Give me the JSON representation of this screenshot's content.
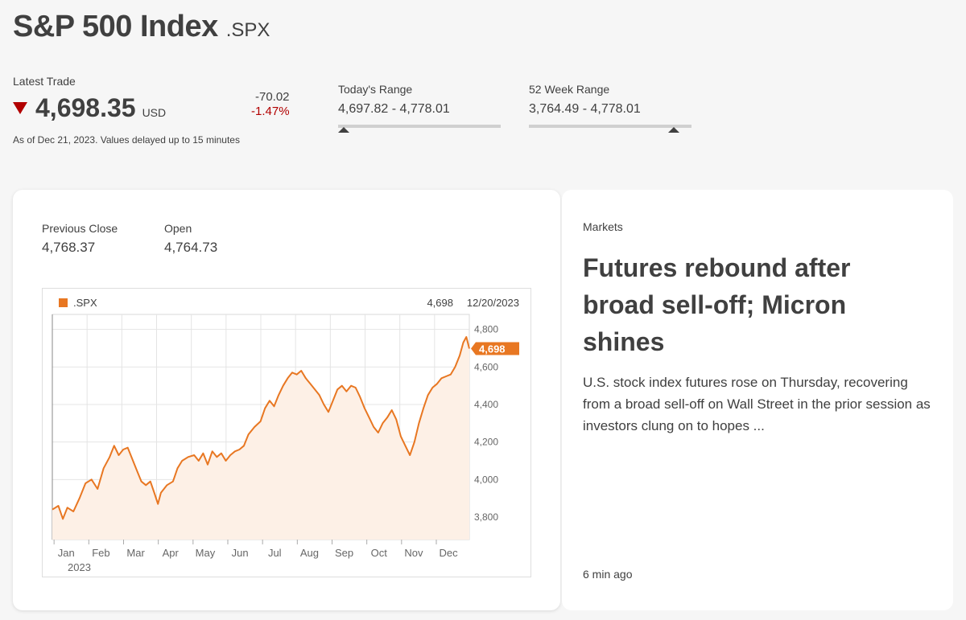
{
  "header": {
    "title": "S&P 500 Index",
    "ric": ".SPX"
  },
  "quote": {
    "label": "Latest Trade",
    "price": "4,698.35",
    "currency": "USD",
    "change": "-70.02",
    "change_pct": "-1.47%",
    "as_of": "As of Dec 21, 2023. Values delayed up to 15 minutes",
    "direction": "down",
    "down_color": "#b20000"
  },
  "todays_range": {
    "label": "Today's Range",
    "value": "4,697.82 - 4,778.01",
    "position": 0.0
  },
  "week52_range": {
    "label": "52 Week Range",
    "value": "3,764.49 - 4,778.01",
    "position": 0.92
  },
  "stats": {
    "prev_close_label": "Previous Close",
    "prev_close": "4,768.37",
    "open_label": "Open",
    "open": "4,764.73"
  },
  "chart_data": {
    "type": "area",
    "series": [
      {
        "name": ".SPX",
        "color": "#e87722"
      }
    ],
    "legend": ".SPX",
    "header_value": "4,698",
    "header_date": "12/20/2023",
    "last_value": 4698,
    "last_label": "4,698",
    "ylim": [
      3680,
      4880
    ],
    "yticks": [
      3800,
      4000,
      4200,
      4400,
      4600,
      4800
    ],
    "ytick_labels": [
      "3,800",
      "4,000",
      "4,200",
      "4,400",
      "4,600",
      "4,800"
    ],
    "xlabels": [
      "Jan",
      "Feb",
      "Mar",
      "Apr",
      "May",
      "Jun",
      "Jul",
      "Aug",
      "Sep",
      "Oct",
      "Nov",
      "Dec"
    ],
    "year_label": "2023",
    "grid": true,
    "points": [
      [
        0.0,
        3840
      ],
      [
        0.2,
        3860
      ],
      [
        0.35,
        3790
      ],
      [
        0.5,
        3850
      ],
      [
        0.7,
        3830
      ],
      [
        0.9,
        3900
      ],
      [
        1.1,
        3980
      ],
      [
        1.3,
        4000
      ],
      [
        1.5,
        3950
      ],
      [
        1.7,
        4060
      ],
      [
        1.9,
        4120
      ],
      [
        2.05,
        4180
      ],
      [
        2.2,
        4130
      ],
      [
        2.35,
        4160
      ],
      [
        2.5,
        4170
      ],
      [
        2.65,
        4110
      ],
      [
        2.8,
        4050
      ],
      [
        2.95,
        3990
      ],
      [
        3.1,
        3970
      ],
      [
        3.25,
        3990
      ],
      [
        3.4,
        3920
      ],
      [
        3.5,
        3870
      ],
      [
        3.6,
        3930
      ],
      [
        3.8,
        3970
      ],
      [
        4.0,
        3990
      ],
      [
        4.15,
        4060
      ],
      [
        4.3,
        4100
      ],
      [
        4.5,
        4120
      ],
      [
        4.7,
        4130
      ],
      [
        4.85,
        4100
      ],
      [
        5.0,
        4140
      ],
      [
        5.15,
        4080
      ],
      [
        5.3,
        4150
      ],
      [
        5.45,
        4120
      ],
      [
        5.6,
        4140
      ],
      [
        5.75,
        4100
      ],
      [
        5.9,
        4130
      ],
      [
        6.05,
        4150
      ],
      [
        6.2,
        4160
      ],
      [
        6.35,
        4180
      ],
      [
        6.5,
        4240
      ],
      [
        6.7,
        4280
      ],
      [
        6.9,
        4310
      ],
      [
        7.05,
        4380
      ],
      [
        7.2,
        4420
      ],
      [
        7.35,
        4390
      ],
      [
        7.5,
        4450
      ],
      [
        7.65,
        4500
      ],
      [
        7.8,
        4540
      ],
      [
        7.95,
        4570
      ],
      [
        8.1,
        4560
      ],
      [
        8.25,
        4580
      ],
      [
        8.4,
        4540
      ],
      [
        8.55,
        4510
      ],
      [
        8.7,
        4480
      ],
      [
        8.85,
        4450
      ],
      [
        9.0,
        4400
      ],
      [
        9.15,
        4360
      ],
      [
        9.3,
        4420
      ],
      [
        9.45,
        4480
      ],
      [
        9.6,
        4500
      ],
      [
        9.75,
        4470
      ],
      [
        9.9,
        4500
      ],
      [
        10.05,
        4490
      ],
      [
        10.2,
        4440
      ],
      [
        10.35,
        4380
      ],
      [
        10.5,
        4330
      ],
      [
        10.65,
        4280
      ],
      [
        10.8,
        4250
      ],
      [
        10.95,
        4300
      ],
      [
        11.1,
        4330
      ],
      [
        11.25,
        4370
      ],
      [
        11.4,
        4320
      ],
      [
        11.55,
        4230
      ],
      [
        11.7,
        4180
      ],
      [
        11.85,
        4130
      ],
      [
        12.0,
        4200
      ],
      [
        12.15,
        4300
      ],
      [
        12.3,
        4380
      ],
      [
        12.45,
        4450
      ],
      [
        12.6,
        4490
      ],
      [
        12.75,
        4510
      ],
      [
        12.9,
        4540
      ],
      [
        13.05,
        4550
      ],
      [
        13.2,
        4560
      ],
      [
        13.35,
        4600
      ],
      [
        13.5,
        4660
      ],
      [
        13.62,
        4730
      ],
      [
        13.72,
        4760
      ],
      [
        13.82,
        4698
      ]
    ]
  },
  "news": {
    "section": "Markets",
    "headline": "Futures rebound after broad sell-off; Micron shines",
    "summary": "U.S. stock index futures rose on Thursday, recovering from a broad sell-off on Wall Street in the prior session as investors clung on to hopes ...",
    "time_ago": "6 min ago"
  }
}
